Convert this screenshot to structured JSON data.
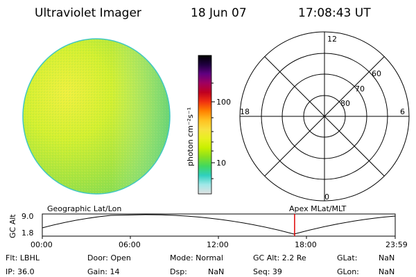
{
  "header": {
    "instrument": "Ultraviolet Imager",
    "date": "18 Jun 07",
    "time": "17:08:43 UT"
  },
  "image_panel": {
    "description_colors": [
      "#c8f020",
      "#f0f040",
      "#98e040",
      "#70d860",
      "#40c8b0"
    ]
  },
  "colorbar": {
    "unit_label": "photon cm⁻²s⁻¹",
    "tick_100": "100",
    "tick_10": "10",
    "stops": [
      "#e0e0e0",
      "#a0e8e8",
      "#30d0c0",
      "#40d860",
      "#88e020",
      "#c8f000",
      "#e8f020",
      "#f8e040",
      "#ffc020",
      "#ff8000",
      "#f03010",
      "#c00020",
      "#a00060",
      "#600080",
      "#200040",
      "#000000"
    ]
  },
  "polar": {
    "mlt_top": "12",
    "mlt_left": "18",
    "mlt_right": "6",
    "mlt_bottom": "0",
    "lat_60": "60",
    "lat_70": "70",
    "lat_80": "80"
  },
  "orbit": {
    "left_title": "Geographic Lat/Lon",
    "right_title": "Apex MLat/MLT",
    "ylabel": "GC Alt",
    "ytick_high": "9.0",
    "ytick_low": "1.8",
    "xticks": [
      "00:00",
      "06:00",
      "12:00",
      "18:00",
      "23:59"
    ],
    "marker_color": "#e00000",
    "marker_time_hours": 17.145
  },
  "footer": {
    "row1": {
      "flt": "Flt: LBHL",
      "door": "Door: Open",
      "mode": "Mode: Normal",
      "gcalt": "GC Alt: 2.2 Re",
      "glat_label": "GLat:",
      "glat_val": "NaN"
    },
    "row2": {
      "ip": "IP: 36.0",
      "gain": "Gain: 14",
      "dsp_label": "Dsp:",
      "dsp_val": "NaN",
      "seq": "Seq: 39",
      "glon_label": "GLon:",
      "glon_val": "NaN"
    }
  }
}
